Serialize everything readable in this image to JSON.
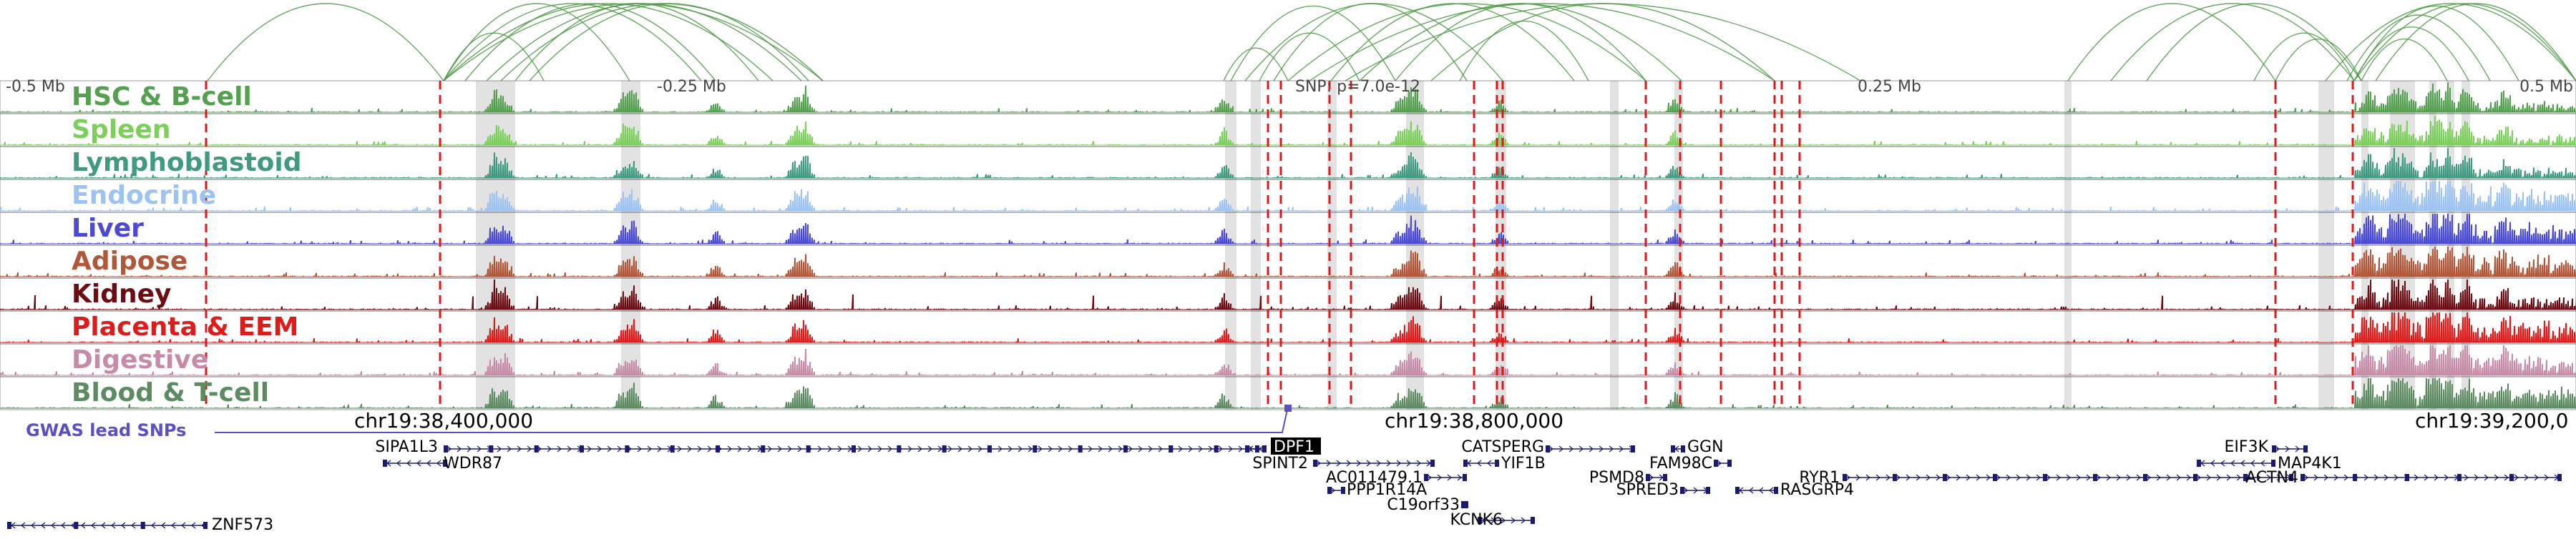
{
  "tracks": [
    {
      "label": "HSC & B-cell",
      "color": "#55a050"
    },
    {
      "label": "Spleen",
      "color": "#7ccf5a"
    },
    {
      "label": "Lymphoblastoid",
      "color": "#3f9a80"
    },
    {
      "label": "Endocrine",
      "color": "#9cc3f2"
    },
    {
      "label": "Liver",
      "color": "#4a4ad2"
    },
    {
      "label": "Adipose",
      "color": "#b0573a"
    },
    {
      "label": "Kidney",
      "color": "#6b0d12"
    },
    {
      "label": "Placenta & EEM",
      "color": "#dd1c1c"
    },
    {
      "label": "Digestive",
      "color": "#c58ba8"
    },
    {
      "label": "Blood & T-cell",
      "color": "#5d8b61"
    }
  ],
  "distance_labels": [
    "-0.5 Mb",
    "-0.25 Mb",
    "0.25 Mb",
    "0.5 Mb"
  ],
  "snp_label": "SNP: p=7.0e-12",
  "coordinates": [
    "chr19:38,400,000",
    "chr19:38,800,000",
    "chr19:39,200,0"
  ],
  "gwas_label": "GWAS lead SNPs",
  "genes": [
    {
      "name": "SIPA1L3",
      "strand": "+"
    },
    {
      "name": "WDR87",
      "strand": "-"
    },
    {
      "name": "DPF1",
      "strand": "-",
      "highlight": true
    },
    {
      "name": "SPINT2",
      "strand": "+"
    },
    {
      "name": "AC011479.1",
      "strand": "+"
    },
    {
      "name": "PPP1R14A",
      "strand": "+"
    },
    {
      "name": "C19orf33",
      "strand": "-"
    },
    {
      "name": "KCNK6",
      "strand": "+"
    },
    {
      "name": "CATSPERG",
      "strand": "+"
    },
    {
      "name": "YIF1B",
      "strand": "-"
    },
    {
      "name": "GGN",
      "strand": "-"
    },
    {
      "name": "FAM98C",
      "strand": "+"
    },
    {
      "name": "PSMD8",
      "strand": "+"
    },
    {
      "name": "SPRED3",
      "strand": "+"
    },
    {
      "name": "RYR1",
      "strand": "+"
    },
    {
      "name": "RASGRP4",
      "strand": "-"
    },
    {
      "name": "EIF3K",
      "strand": "+"
    },
    {
      "name": "MAP4K1",
      "strand": "-"
    },
    {
      "name": "ACTN4",
      "strand": "+"
    },
    {
      "name": "ZNF573",
      "strand": "-"
    }
  ],
  "colors": {
    "arcs": "#4d9a45",
    "red_line": "#e01818",
    "gray_band": "#d8d8d8",
    "gene": "#1a1a6e",
    "gwas": "#5b4fc6",
    "track_border": "#555555"
  }
}
